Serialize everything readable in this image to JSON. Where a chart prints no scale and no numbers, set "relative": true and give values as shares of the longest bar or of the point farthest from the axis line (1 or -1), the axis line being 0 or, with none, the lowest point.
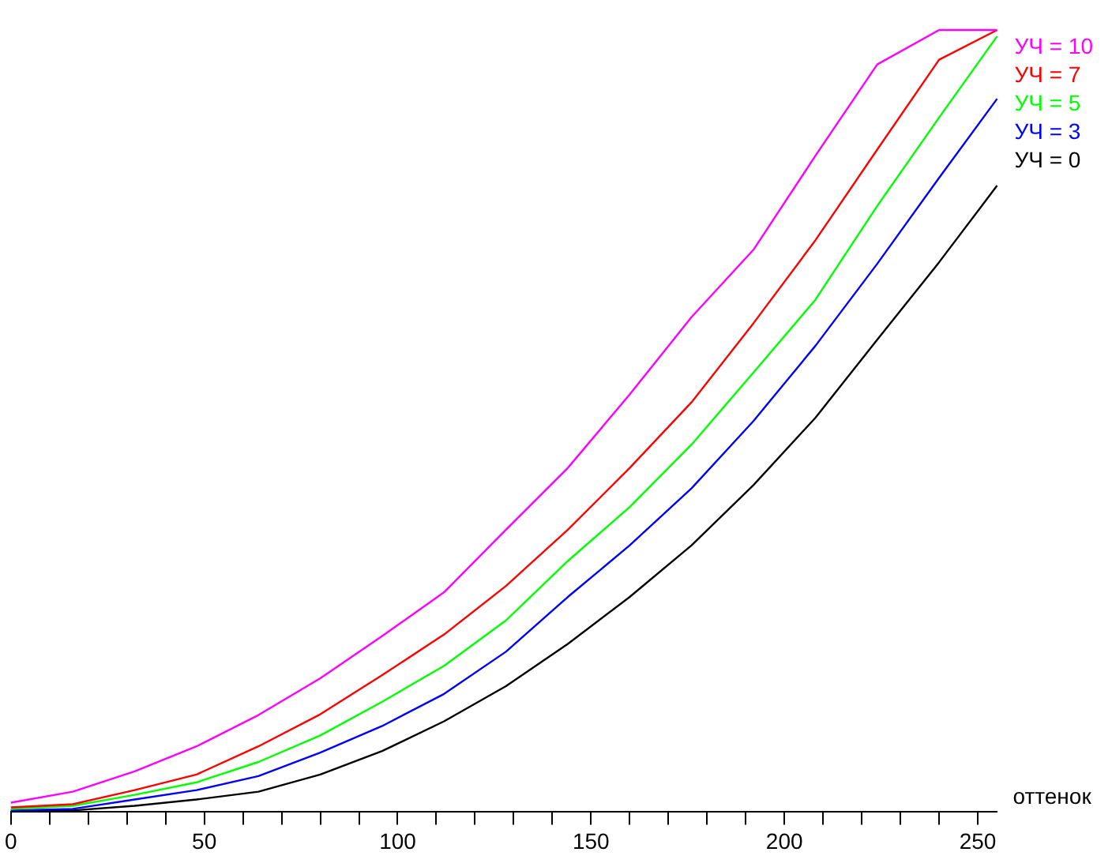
{
  "chart_data": {
    "type": "line",
    "relative": true,
    "xlabel": "оттенок",
    "legend": "top right",
    "grid": false,
    "marker": "none",
    "line_style": "solid",
    "x": [
      0,
      16,
      32,
      48,
      64,
      80,
      96,
      112,
      128,
      144,
      160,
      176,
      192,
      208,
      224,
      240,
      255
    ],
    "xlim": [
      0,
      255
    ],
    "xticks": [
      0,
      {
        "value": 10,
        "label": null
      },
      {
        "value": 20,
        "label": null
      },
      {
        "value": 30,
        "label": null
      },
      {
        "value": 40,
        "label": null
      },
      50,
      {
        "value": 60,
        "label": null
      },
      {
        "value": 70,
        "label": null
      },
      {
        "value": 80,
        "label": null
      },
      {
        "value": 90,
        "label": null
      },
      100,
      {
        "value": 110,
        "label": null
      },
      {
        "value": 120,
        "label": null
      },
      {
        "value": 130,
        "label": null
      },
      {
        "value": 140,
        "label": null
      },
      150,
      {
        "value": 160,
        "label": null
      },
      {
        "value": 170,
        "label": null
      },
      {
        "value": 180,
        "label": null
      },
      {
        "value": 190,
        "label": null
      },
      200,
      {
        "value": 210,
        "label": null
      },
      {
        "value": 220,
        "label": null
      },
      {
        "value": 230,
        "label": null
      },
      {
        "value": 240,
        "label": null
      },
      250
    ],
    "series": [
      {
        "name": "УЧ = 10",
        "color": "#ff00ff",
        "values": [
          0.012,
          0.026,
          0.052,
          0.084,
          0.124,
          0.171,
          0.225,
          0.281,
          0.361,
          0.44,
          0.534,
          0.633,
          0.719,
          0.839,
          0.956,
          1,
          1
        ]
      },
      {
        "name": "УЧ = 7",
        "color": "#ff0000",
        "values": [
          0.006,
          0.01,
          0.028,
          0.048,
          0.084,
          0.125,
          0.175,
          0.227,
          0.289,
          0.361,
          0.44,
          0.524,
          0.625,
          0.731,
          0.847,
          0.962,
          1
        ]
      },
      {
        "name": "УЧ = 5",
        "color": "#00ff00",
        "values": [
          0.004,
          0.008,
          0.022,
          0.038,
          0.064,
          0.098,
          0.141,
          0.187,
          0.245,
          0.321,
          0.39,
          0.47,
          0.562,
          0.655,
          0.775,
          0.888,
          0.992
        ]
      },
      {
        "name": "УЧ = 3",
        "color": "#0000ff",
        "values": [
          0.002,
          0.004,
          0.016,
          0.028,
          0.046,
          0.076,
          0.11,
          0.151,
          0.205,
          0.275,
          0.341,
          0.414,
          0.5,
          0.596,
          0.701,
          0.811,
          0.912
        ]
      },
      {
        "name": "УЧ = 0",
        "color": "#000000",
        "values": [
          0.002,
          0.002,
          0.008,
          0.016,
          0.026,
          0.048,
          0.078,
          0.116,
          0.161,
          0.215,
          0.275,
          0.341,
          0.418,
          0.504,
          0.604,
          0.703,
          0.801
        ]
      }
    ]
  }
}
